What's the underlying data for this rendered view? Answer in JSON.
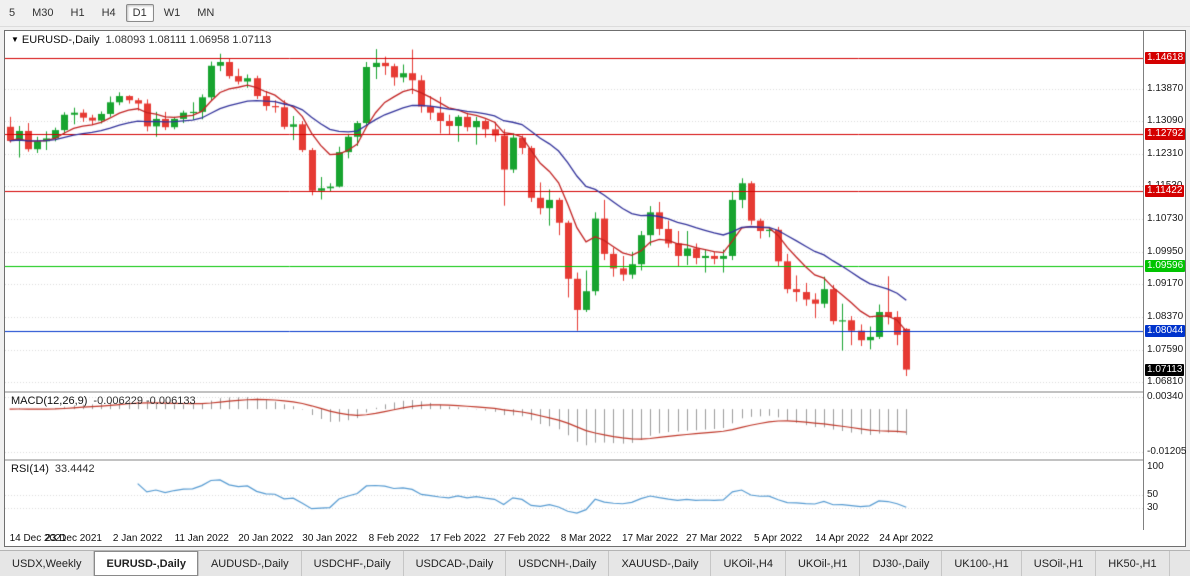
{
  "toolbar": {
    "timeframes": [
      {
        "label": "5",
        "active": false
      },
      {
        "label": "M30",
        "active": false
      },
      {
        "label": "H1",
        "active": false
      },
      {
        "label": "H4",
        "active": false
      },
      {
        "label": "D1",
        "active": true
      },
      {
        "label": "W1",
        "active": false
      },
      {
        "label": "MN",
        "active": false
      }
    ]
  },
  "chart": {
    "symbol_label": "EURUSD-,Daily",
    "ohlc_label": "1.08093 1.08111 1.06958 1.07113"
  },
  "chart_data": {
    "type": "candlestick",
    "symbol": "EURUSD-,Daily",
    "open": 1.08093,
    "high": 1.08111,
    "low": 1.06958,
    "close": 1.07113,
    "bar_width": 9.15,
    "bars_per_label": 7,
    "colors": {
      "up": "#17a42f",
      "down": "#e63a33",
      "grid": "#dadada",
      "background": "#ffffff"
    },
    "price_axis": {
      "min": 1.0679,
      "max": 1.1493,
      "ticks": [
        1.1387,
        1.1309,
        1.1231,
        1.1153,
        1.1073,
        1.0995,
        1.0917,
        1.0837,
        1.0759,
        1.0681
      ]
    },
    "hlines": [
      {
        "price": 1.14618,
        "label": "1.14618",
        "color": "#d40000"
      },
      {
        "price": 1.12792,
        "label": "1.12792",
        "color": "#d40000"
      },
      {
        "price": 1.11422,
        "label": "1.11422",
        "color": "#d40000"
      },
      {
        "price": 1.09596,
        "label": "1.09596",
        "color": "#00c400"
      },
      {
        "price": 1.08044,
        "label": "1.08044",
        "color": "#0033cc"
      }
    ],
    "current_price": {
      "value": 1.07113,
      "label": "1.07113",
      "color": "#000000"
    },
    "ma_fast": {
      "period": 8,
      "color": "#c22222"
    },
    "ma_slow": {
      "period": 21,
      "color": "#32329b"
    },
    "macd": {
      "label": "MACD(12,26,9)",
      "values_label": "-0.006229 -0.006133",
      "signal_color": "#c0392b",
      "hist_color": "#9b9b9b",
      "range": [
        -0.0132,
        0.0037
      ],
      "ticks": [
        {
          "value": 0.0034,
          "label": "0.00340"
        },
        {
          "value": -0.01205,
          "label": "-0.01205"
        }
      ]
    },
    "rsi": {
      "label": "RSI(14)",
      "value_label": "33.4442",
      "color": "#569bd2",
      "range": [
        0,
        100
      ],
      "levels": [
        50,
        30
      ],
      "axis_ticks": [
        100,
        50,
        30
      ]
    },
    "x_labels": [
      "14 Dec 2021",
      "23 Dec 2021",
      "2 Jan 2022",
      "11 Jan 2022",
      "20 Jan 2022",
      "30 Jan 2022",
      "8 Feb 2022",
      "17 Feb 2022",
      "27 Feb 2022",
      "8 Mar 2022",
      "17 Mar 2022",
      "27 Mar 2022",
      "5 Apr 2022",
      "14 Apr 2022",
      "24 Apr 2022"
    ],
    "candles": [
      [
        1.1296,
        1.132,
        1.1258,
        1.1262
      ],
      [
        1.1262,
        1.1298,
        1.1222,
        1.1286
      ],
      [
        1.1286,
        1.1305,
        1.1236,
        1.1242
      ],
      [
        1.1242,
        1.1272,
        1.1233,
        1.1261
      ],
      [
        1.1261,
        1.1285,
        1.124,
        1.1268
      ],
      [
        1.1268,
        1.1294,
        1.1261,
        1.1288
      ],
      [
        1.1288,
        1.1331,
        1.128,
        1.1325
      ],
      [
        1.1325,
        1.1342,
        1.1302,
        1.133
      ],
      [
        1.133,
        1.1338,
        1.1308,
        1.1318
      ],
      [
        1.1318,
        1.1325,
        1.13,
        1.1311
      ],
      [
        1.1311,
        1.1333,
        1.1304,
        1.1327
      ],
      [
        1.1327,
        1.1369,
        1.132,
        1.1355
      ],
      [
        1.1355,
        1.1379,
        1.1348,
        1.137
      ],
      [
        1.137,
        1.1372,
        1.1352,
        1.136
      ],
      [
        1.136,
        1.1365,
        1.1335,
        1.1352
      ],
      [
        1.1352,
        1.1362,
        1.1285,
        1.1297
      ],
      [
        1.1297,
        1.1332,
        1.1272,
        1.1315
      ],
      [
        1.1315,
        1.1332,
        1.1288,
        1.1295
      ],
      [
        1.1295,
        1.132,
        1.129,
        1.1315
      ],
      [
        1.1315,
        1.1335,
        1.1305,
        1.133
      ],
      [
        1.133,
        1.1355,
        1.1313,
        1.1332
      ],
      [
        1.1332,
        1.1374,
        1.1314,
        1.1367
      ],
      [
        1.1367,
        1.1453,
        1.136,
        1.1443
      ],
      [
        1.1443,
        1.1472,
        1.143,
        1.1452
      ],
      [
        1.1452,
        1.146,
        1.1412,
        1.1418
      ],
      [
        1.1418,
        1.1436,
        1.1398,
        1.1405
      ],
      [
        1.1405,
        1.1422,
        1.139,
        1.1413
      ],
      [
        1.1413,
        1.1419,
        1.1363,
        1.137
      ],
      [
        1.137,
        1.1382,
        1.1335,
        1.1346
      ],
      [
        1.1346,
        1.136,
        1.133,
        1.1343
      ],
      [
        1.1343,
        1.136,
        1.129,
        1.1296
      ],
      [
        1.1296,
        1.1322,
        1.1264,
        1.1302
      ],
      [
        1.1302,
        1.131,
        1.1235,
        1.124
      ],
      [
        1.124,
        1.1245,
        1.1131,
        1.1142
      ],
      [
        1.1142,
        1.1175,
        1.1121,
        1.1148
      ],
      [
        1.1148,
        1.116,
        1.114,
        1.1152
      ],
      [
        1.1152,
        1.1248,
        1.115,
        1.1235
      ],
      [
        1.1235,
        1.1279,
        1.122,
        1.1272
      ],
      [
        1.1272,
        1.131,
        1.125,
        1.1305
      ],
      [
        1.1305,
        1.1452,
        1.13,
        1.144
      ],
      [
        1.144,
        1.1483,
        1.1411,
        1.145
      ],
      [
        1.145,
        1.1465,
        1.1421,
        1.1442
      ],
      [
        1.1442,
        1.1448,
        1.1395,
        1.1415
      ],
      [
        1.1415,
        1.1446,
        1.1403,
        1.1425
      ],
      [
        1.1425,
        1.1482,
        1.1375,
        1.1408
      ],
      [
        1.1408,
        1.142,
        1.133,
        1.1345
      ],
      [
        1.1345,
        1.137,
        1.1313,
        1.133
      ],
      [
        1.133,
        1.1368,
        1.128,
        1.131
      ],
      [
        1.131,
        1.1325,
        1.1277,
        1.1298
      ],
      [
        1.1298,
        1.1324,
        1.126,
        1.132
      ],
      [
        1.132,
        1.133,
        1.1285,
        1.1295
      ],
      [
        1.1295,
        1.132,
        1.1253,
        1.131
      ],
      [
        1.131,
        1.1314,
        1.127,
        1.129
      ],
      [
        1.129,
        1.1308,
        1.126,
        1.1275
      ],
      [
        1.1275,
        1.129,
        1.1106,
        1.1193
      ],
      [
        1.1193,
        1.128,
        1.1185,
        1.127
      ],
      [
        1.127,
        1.1275,
        1.123,
        1.1245
      ],
      [
        1.1245,
        1.125,
        1.1115,
        1.1125
      ],
      [
        1.1125,
        1.1162,
        1.1085,
        1.11
      ],
      [
        1.11,
        1.1145,
        1.1058,
        1.112
      ],
      [
        1.112,
        1.1125,
        1.1035,
        1.1065
      ],
      [
        1.1065,
        1.107,
        1.0885,
        1.093
      ],
      [
        1.093,
        1.0945,
        1.0805,
        1.0855
      ],
      [
        1.0855,
        1.095,
        1.085,
        1.09
      ],
      [
        1.09,
        1.109,
        1.089,
        1.1075
      ],
      [
        1.1075,
        1.112,
        1.0975,
        1.099
      ],
      [
        1.099,
        1.1005,
        1.0935,
        1.0955
      ],
      [
        1.0955,
        1.0985,
        1.0925,
        1.094
      ],
      [
        1.094,
        1.0995,
        1.093,
        1.0965
      ],
      [
        1.0965,
        1.1045,
        1.095,
        1.1035
      ],
      [
        1.1035,
        1.1105,
        1.101,
        1.109
      ],
      [
        1.109,
        1.1115,
        1.1035,
        1.105
      ],
      [
        1.105,
        1.107,
        1.1005,
        1.1015
      ],
      [
        1.1015,
        1.1045,
        1.096,
        1.0985
      ],
      [
        1.0985,
        1.1045,
        1.0963,
        1.1003
      ],
      [
        1.1003,
        1.1015,
        1.0965,
        1.098
      ],
      [
        1.098,
        1.1,
        1.0945,
        1.0985
      ],
      [
        1.0985,
        1.0995,
        1.0965,
        1.0978
      ],
      [
        1.0978,
        1.1,
        1.0945,
        1.0985
      ],
      [
        1.0985,
        1.114,
        1.0975,
        1.112
      ],
      [
        1.112,
        1.1172,
        1.11,
        1.116
      ],
      [
        1.116,
        1.1165,
        1.106,
        1.107
      ],
      [
        1.107,
        1.1075,
        1.1027,
        1.1045
      ],
      [
        1.1045,
        1.1055,
        1.103,
        1.1048
      ],
      [
        1.1048,
        1.1055,
        1.096,
        1.0972
      ],
      [
        1.0972,
        1.099,
        1.0895,
        1.0905
      ],
      [
        1.0905,
        1.0938,
        1.0875,
        1.0898
      ],
      [
        1.0898,
        1.092,
        1.0865,
        1.088
      ],
      [
        1.088,
        1.0895,
        1.0835,
        1.087
      ],
      [
        1.087,
        1.0935,
        1.086,
        1.0905
      ],
      [
        1.0905,
        1.0915,
        1.082,
        1.0828
      ],
      [
        1.0828,
        1.087,
        1.0757,
        1.083
      ],
      [
        1.083,
        1.084,
        1.077,
        1.0805
      ],
      [
        1.0805,
        1.082,
        1.0768,
        1.0782
      ],
      [
        1.0782,
        1.0815,
        1.076,
        1.079
      ],
      [
        1.079,
        1.0868,
        1.0785,
        1.085
      ],
      [
        1.085,
        1.0936,
        1.082,
        1.0838
      ],
      [
        1.0838,
        1.0852,
        1.077,
        1.0795
      ],
      [
        1.08093,
        1.08111,
        1.06958,
        1.07113
      ]
    ]
  },
  "tabs": {
    "items": [
      {
        "label": "USDX,Weekly",
        "active": false
      },
      {
        "label": "EURUSD-,Daily",
        "active": true
      },
      {
        "label": "AUDUSD-,Daily",
        "active": false
      },
      {
        "label": "USDCHF-,Daily",
        "active": false
      },
      {
        "label": "USDCAD-,Daily",
        "active": false
      },
      {
        "label": "USDCNH-,Daily",
        "active": false
      },
      {
        "label": "XAUUSD-,Daily",
        "active": false
      },
      {
        "label": "UKOil-,H4",
        "active": false
      },
      {
        "label": "UKOil-,H1",
        "active": false
      },
      {
        "label": "DJ30-,Daily",
        "active": false
      },
      {
        "label": "UK100-,H1",
        "active": false
      },
      {
        "label": "USOil-,H1",
        "active": false
      },
      {
        "label": "HK50-,H1",
        "active": false
      }
    ]
  }
}
